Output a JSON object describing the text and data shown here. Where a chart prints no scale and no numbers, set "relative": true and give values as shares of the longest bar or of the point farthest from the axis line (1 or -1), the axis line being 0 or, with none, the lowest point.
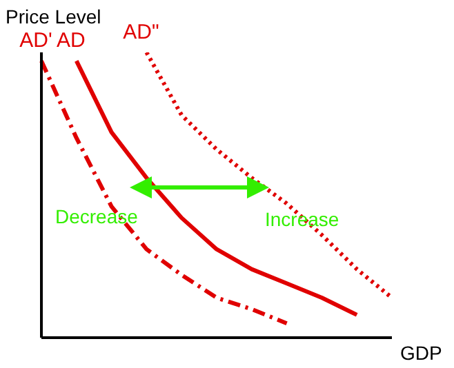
{
  "chart_data": {
    "type": "line",
    "relative": true,
    "xlabel": "GDP",
    "ylabel": "Price Level",
    "categories": [
      null,
      null,
      null,
      null,
      null,
      null,
      null,
      null,
      null,
      null,
      null
    ],
    "series": [
      {
        "name": "AD'",
        "color": "#e00000",
        "line_style": "dashdot",
        "values": [
          0.97,
          0.7,
          0.46,
          0.31,
          0.22,
          0.14,
          0.1,
          0.05,
          null,
          null,
          null
        ]
      },
      {
        "name": "AD",
        "color": "#e00000",
        "line_style": "solid",
        "values": [
          null,
          0.97,
          0.72,
          0.56,
          0.42,
          0.31,
          0.24,
          0.19,
          0.14,
          0.08,
          null
        ]
      },
      {
        "name": "AD\"",
        "color": "#e00000",
        "line_style": "dotted",
        "values": [
          null,
          null,
          null,
          1,
          0.78,
          0.66,
          0.56,
          0.47,
          0.36,
          0.24,
          0.14
        ]
      }
    ],
    "annotations": [
      "Decrease",
      "Increase"
    ],
    "marker": "none"
  }
}
